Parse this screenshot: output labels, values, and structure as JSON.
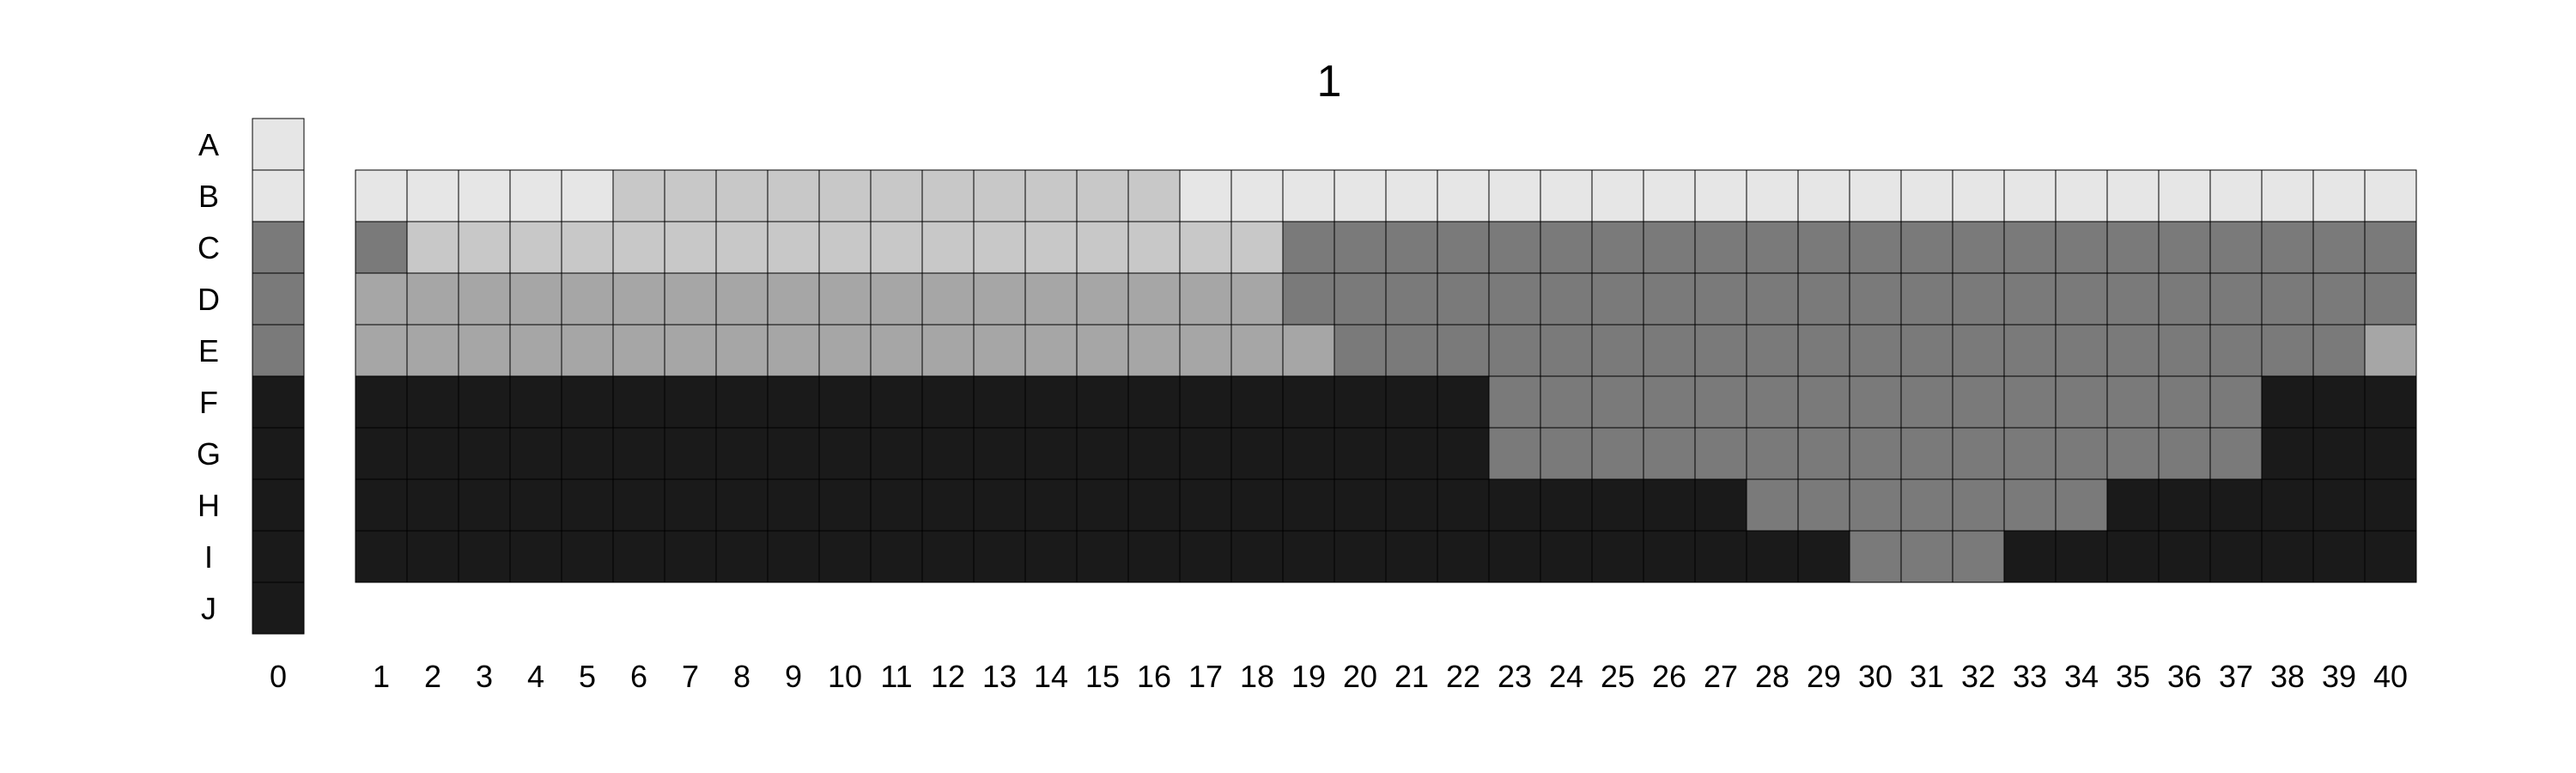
{
  "chart_data": {
    "type": "heatmap",
    "title": "1",
    "row_labels": [
      "A",
      "B",
      "C",
      "D",
      "E",
      "F",
      "G",
      "H",
      "I",
      "J"
    ],
    "column_labels": [
      "0",
      "1",
      "2",
      "3",
      "4",
      "5",
      "6",
      "7",
      "8",
      "9",
      "10",
      "11",
      "12",
      "13",
      "14",
      "15",
      "16",
      "17",
      "18",
      "19",
      "20",
      "21",
      "22",
      "23",
      "24",
      "25",
      "26",
      "27",
      "28",
      "29",
      "30",
      "31",
      "32",
      "33",
      "34",
      "35",
      "36",
      "37",
      "38",
      "39",
      "40"
    ],
    "reference_column": [
      "#e6e6e6",
      "#e6e6e6",
      "#7a7a7a",
      "#7a7a7a",
      "#7a7a7a",
      "#1a1a1a",
      "#1a1a1a",
      "#1a1a1a",
      "#1a1a1a",
      "#1a1a1a"
    ],
    "grid_rows": [
      "B",
      "C",
      "D",
      "E",
      "F",
      "G",
      "H",
      "I"
    ],
    "palette": {
      "W": "#e6e6e6",
      "L": "#c8c8c8",
      "S": "#a6a6a6",
      "M": "#7a7a7a",
      "K": "#1a1a1a"
    },
    "grid": [
      "WWWWWLLLLLLLLLLLWWWWWWWWWWWWWWWWWWWWWWWW",
      "MLLLLLLLLLLLLLLLLLMMMMMMMMMMMMMMMMMMMMMM",
      "SSSSSSSSSSSSSSSSSSMMMMMMMMMMMMMMMMMMMMMM",
      "SSSSSSSSSSSSSSSSSSSMMMMMMMMMMMMMMMMMMMMS",
      "KKKKKKKKKKKKKKKKKKKKKKMMMMMMMMMMMMMMMKKK",
      "KKKKKKKKKKKKKKKKKKKKKKMMMMMMMMMMMMMMMKKK",
      "KKKKKKKKKKKKKKKKKKKKKKKKKKKMMMMMMMKKKKKK",
      "KKKKKKKKKKKKKKKKKKKKKKKKKKKKKMMMKKKKKKKK"
    ]
  }
}
